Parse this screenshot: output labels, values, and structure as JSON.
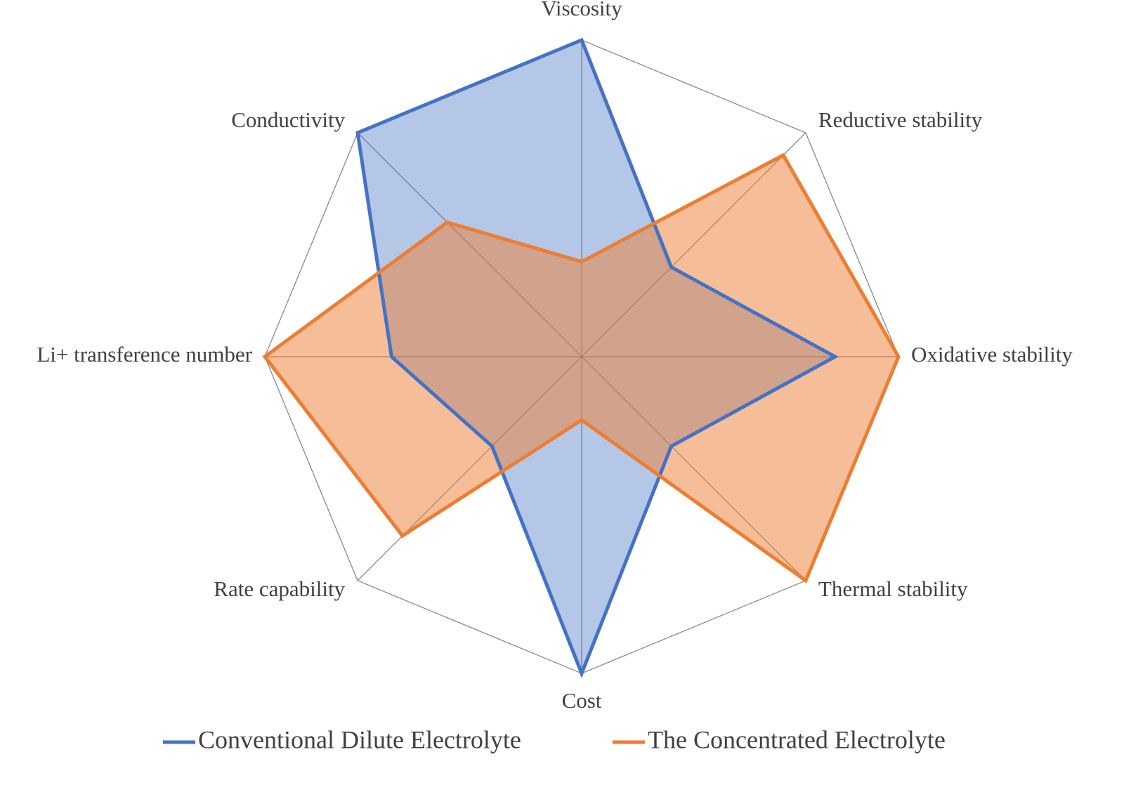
{
  "chart_data": {
    "type": "radar",
    "categories": [
      "Viscosity",
      "Reductive stability",
      "Oxidative stability",
      "Thermal stability",
      "Cost",
      "Rate capability",
      "Li+ transference number",
      "Conductivity"
    ],
    "rlim": [
      0,
      1
    ],
    "series": [
      {
        "name": "Conventional Dilute Electrolyte",
        "color": "#4472c4",
        "values": [
          1.0,
          0.4,
          0.8,
          0.4,
          1.0,
          0.4,
          0.6,
          1.0
        ]
      },
      {
        "name": "The Concentrated Electrolyte",
        "color": "#ed7d31",
        "values": [
          0.3,
          0.9,
          1.0,
          1.0,
          0.2,
          0.8,
          1.0,
          0.6
        ]
      }
    ],
    "legend": "bottom"
  }
}
